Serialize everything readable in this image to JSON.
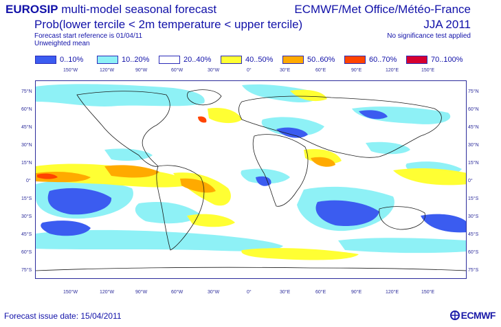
{
  "header": {
    "title_left_bold": "EUROSIP",
    "title_left_rest": " multi-model seasonal forecast",
    "subtitle_left": "Prob(lower tercile < 2m temperature < upper tercile)",
    "reference": "Forecast start reference is 01/04/11",
    "mean_type": "Unweighted mean",
    "title_right": "ECMWF/Met Office/Météo-France",
    "subtitle_right": "JJA 2011",
    "note_right": "No significance test applied"
  },
  "legend": [
    {
      "label": "0..10%",
      "color": "#3b5cf0"
    },
    {
      "label": "10..20%",
      "color": "#8ef1f6"
    },
    {
      "label": "20..40%",
      "color": "#ffffff"
    },
    {
      "label": "40..50%",
      "color": "#ffff33"
    },
    {
      "label": "50..60%",
      "color": "#ffaa00"
    },
    {
      "label": "60..70%",
      "color": "#ff4400"
    },
    {
      "label": "70..100%",
      "color": "#d60030"
    }
  ],
  "map": {
    "lon_ticks": [
      "150°W",
      "120°W",
      "90°W",
      "60°W",
      "30°W",
      "0°",
      "30°E",
      "60°E",
      "90°E",
      "120°E",
      "150°E"
    ],
    "lat_ticks": [
      "75°N",
      "60°N",
      "45°N",
      "30°N",
      "15°N",
      "0°",
      "15°S",
      "30°S",
      "45°S",
      "60°S",
      "75°S"
    ]
  },
  "footer": {
    "issue_date": "Forecast issue date: 15/04/2011",
    "logo": "ECMWF"
  }
}
